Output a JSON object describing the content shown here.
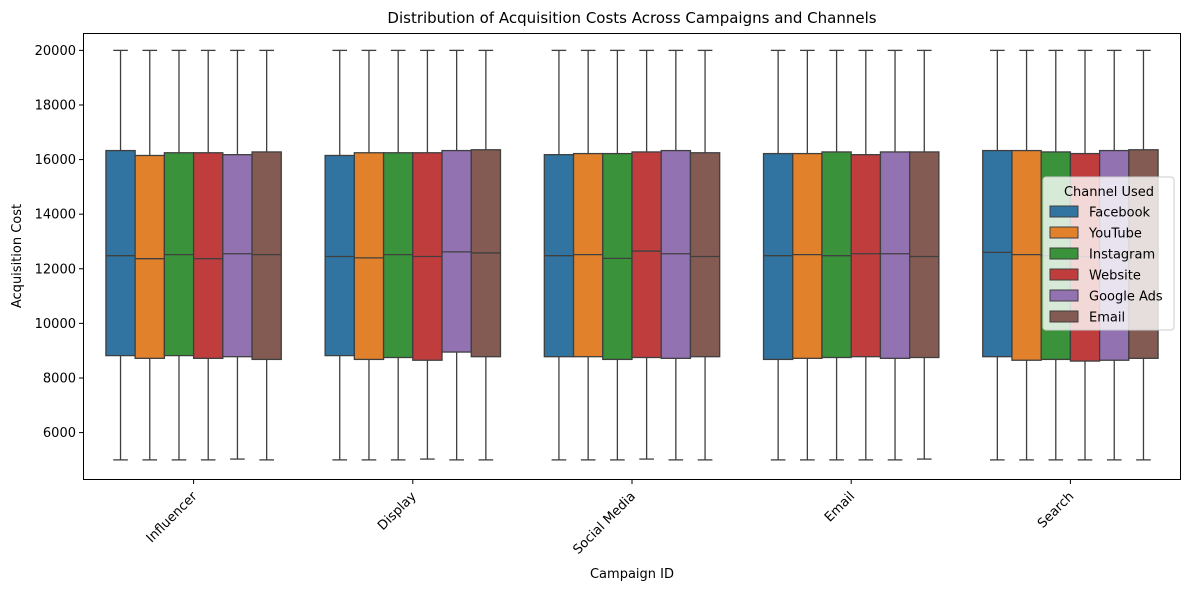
{
  "chart_data": {
    "type": "boxplot",
    "title": "Distribution of Acquisition Costs Across Campaigns and Channels",
    "xlabel": "Campaign ID",
    "ylabel": "Acquisition Cost",
    "ylim": [
      4300,
      20600
    ],
    "yticks": [
      6000,
      8000,
      10000,
      12000,
      14000,
      16000,
      18000,
      20000
    ],
    "grid": false,
    "legend_position": "right",
    "legend_title": "Channel Used",
    "categories": [
      "Influencer",
      "Display",
      "Social Media",
      "Email",
      "Search"
    ],
    "series": [
      {
        "name": "Facebook",
        "color": "#3274a1",
        "boxes": [
          {
            "whislo": 5000,
            "q1": 8820,
            "med": 12480,
            "q3": 16330,
            "whishi": 20000
          },
          {
            "whislo": 5000,
            "q1": 8820,
            "med": 12450,
            "q3": 16150,
            "whishi": 20000
          },
          {
            "whislo": 5000,
            "q1": 8780,
            "med": 12480,
            "q3": 16180,
            "whishi": 20000
          },
          {
            "whislo": 5000,
            "q1": 8680,
            "med": 12480,
            "q3": 16220,
            "whishi": 20000
          },
          {
            "whislo": 5000,
            "q1": 8780,
            "med": 12600,
            "q3": 16330,
            "whishi": 20000
          }
        ]
      },
      {
        "name": "YouTube",
        "color": "#e1812c",
        "boxes": [
          {
            "whislo": 5000,
            "q1": 8720,
            "med": 12370,
            "q3": 16150,
            "whishi": 20000
          },
          {
            "whislo": 5000,
            "q1": 8680,
            "med": 12400,
            "q3": 16250,
            "whishi": 20000
          },
          {
            "whislo": 5000,
            "q1": 8780,
            "med": 12520,
            "q3": 16220,
            "whishi": 20000
          },
          {
            "whislo": 5000,
            "q1": 8720,
            "med": 12520,
            "q3": 16220,
            "whishi": 20000
          },
          {
            "whislo": 5000,
            "q1": 8650,
            "med": 12520,
            "q3": 16330,
            "whishi": 20000
          }
        ]
      },
      {
        "name": "Instagram",
        "color": "#3a923a",
        "boxes": [
          {
            "whislo": 5000,
            "q1": 8820,
            "med": 12520,
            "q3": 16250,
            "whishi": 20000
          },
          {
            "whislo": 5000,
            "q1": 8750,
            "med": 12520,
            "q3": 16250,
            "whishi": 20000
          },
          {
            "whislo": 5000,
            "q1": 8680,
            "med": 12380,
            "q3": 16220,
            "whishi": 20000
          },
          {
            "whislo": 5000,
            "q1": 8750,
            "med": 12480,
            "q3": 16280,
            "whishi": 20000
          },
          {
            "whislo": 5000,
            "q1": 8680,
            "med": 12480,
            "q3": 16280,
            "whishi": 20000
          }
        ]
      },
      {
        "name": "Website",
        "color": "#c03d3e",
        "boxes": [
          {
            "whislo": 5000,
            "q1": 8720,
            "med": 12370,
            "q3": 16250,
            "whishi": 20000
          },
          {
            "whislo": 5030,
            "q1": 8650,
            "med": 12450,
            "q3": 16250,
            "whishi": 20000
          },
          {
            "whislo": 5030,
            "q1": 8750,
            "med": 12650,
            "q3": 16280,
            "whishi": 20000
          },
          {
            "whislo": 5000,
            "q1": 8780,
            "med": 12550,
            "q3": 16180,
            "whishi": 20000
          },
          {
            "whislo": 5000,
            "q1": 8620,
            "med": 12450,
            "q3": 16220,
            "whishi": 20000
          }
        ]
      },
      {
        "name": "Google Ads",
        "color": "#9372b2",
        "boxes": [
          {
            "whislo": 5030,
            "q1": 8780,
            "med": 12550,
            "q3": 16180,
            "whishi": 20000
          },
          {
            "whislo": 5000,
            "q1": 8950,
            "med": 12620,
            "q3": 16330,
            "whishi": 20000
          },
          {
            "whislo": 5000,
            "q1": 8720,
            "med": 12550,
            "q3": 16330,
            "whishi": 20000
          },
          {
            "whislo": 5000,
            "q1": 8720,
            "med": 12550,
            "q3": 16280,
            "whishi": 20000
          },
          {
            "whislo": 5000,
            "q1": 8650,
            "med": 12520,
            "q3": 16330,
            "whishi": 20000
          }
        ]
      },
      {
        "name": "Email",
        "color": "#845b53",
        "boxes": [
          {
            "whislo": 5000,
            "q1": 8680,
            "med": 12520,
            "q3": 16280,
            "whishi": 20000
          },
          {
            "whislo": 5000,
            "q1": 8780,
            "med": 12580,
            "q3": 16360,
            "whishi": 20000
          },
          {
            "whislo": 5000,
            "q1": 8780,
            "med": 12450,
            "q3": 16250,
            "whishi": 20000
          },
          {
            "whislo": 5030,
            "q1": 8750,
            "med": 12450,
            "q3": 16280,
            "whishi": 20000
          },
          {
            "whislo": 5000,
            "q1": 8720,
            "med": 12520,
            "q3": 16360,
            "whishi": 20000
          }
        ]
      }
    ]
  }
}
